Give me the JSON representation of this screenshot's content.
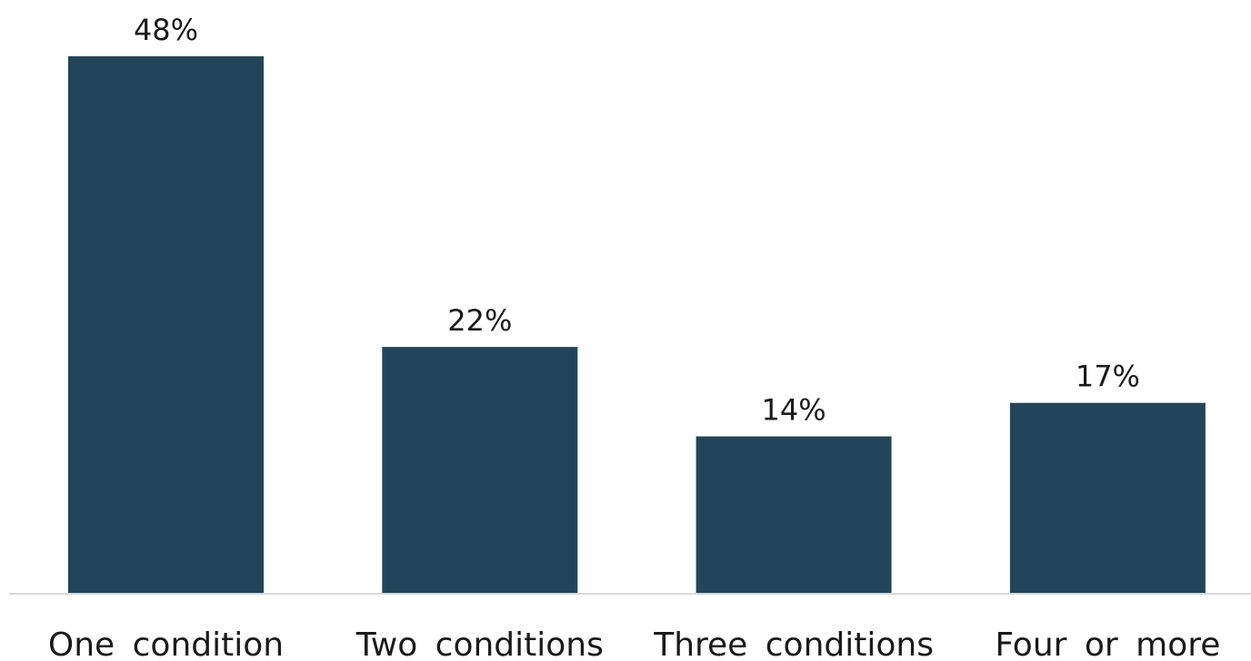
{
  "chart_data": {
    "type": "bar",
    "categories": [
      "One condition",
      "Two conditions",
      "Three conditions",
      "Four or more"
    ],
    "values": [
      48,
      22,
      14,
      17
    ],
    "data_labels": [
      "48%",
      "22%",
      "14%",
      "17%"
    ],
    "unit": "%",
    "title": "",
    "xlabel": "",
    "ylabel": "",
    "ylim": [
      0,
      48
    ],
    "grid": false,
    "legend": "none",
    "bar_color": "#23455a",
    "axis_color": "#d9d9d9"
  }
}
